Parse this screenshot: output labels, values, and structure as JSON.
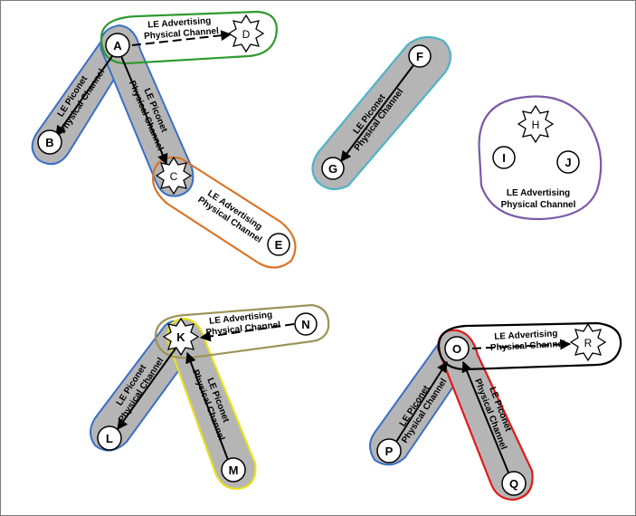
{
  "nodes": {
    "A": "A",
    "B": "B",
    "C": "C",
    "D": "D",
    "E": "E",
    "F": "F",
    "G": "G",
    "H": "H",
    "I": "I",
    "J": "J",
    "K": "K",
    "L": "L",
    "M": "M",
    "N": "N",
    "O": "O",
    "P": "P",
    "Q": "Q",
    "R": "R"
  },
  "labels": {
    "piconet_1": "LE Piconet",
    "piconet_2": "Physical Channel",
    "advertising_1": "LE Advertising",
    "advertising_2": "Physical Channel"
  },
  "colors": {
    "piconet_blue": "#3b6fc4",
    "piconet_fill": "#b8b8b8",
    "advertising_green": "#2f9a2f",
    "advertising_orange": "#d9752a",
    "advertising_cyan": "#4fb3c8",
    "advertising_purple": "#7b5aa6",
    "advertising_olive": "#9c9457",
    "piconet_yellow": "#e8e020",
    "piconet_red": "#e01a1a",
    "advertising_black": "#000000"
  }
}
